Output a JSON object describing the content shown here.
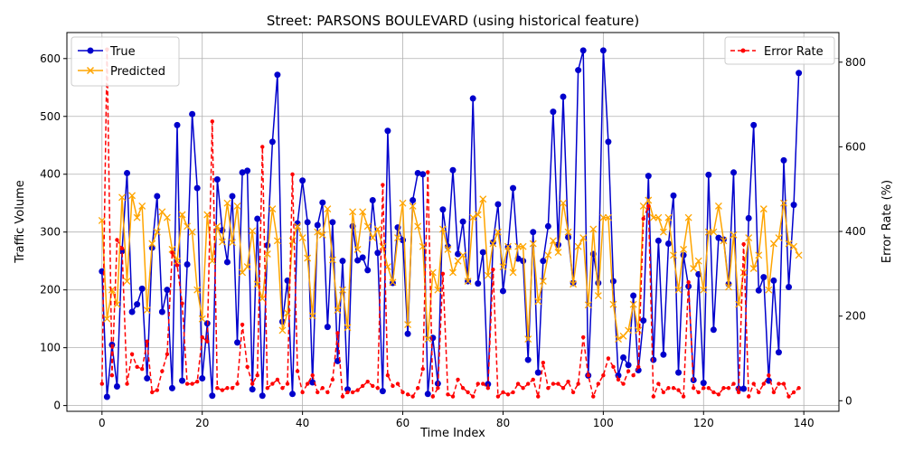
{
  "chart_data": {
    "type": "line",
    "title": "Street: PARSONS BOULEVARD (using historical feature)",
    "xlabel": "Time Index",
    "ylabel_left": "Traffic Volume",
    "ylabel_right": "Error Rate (%)",
    "xlim": [
      -7,
      147
    ],
    "ylim_left": [
      -10,
      645
    ],
    "ylim_right": [
      -25,
      870
    ],
    "x_ticks": [
      0,
      20,
      40,
      60,
      80,
      100,
      120,
      140
    ],
    "y_ticks_left": [
      0,
      100,
      200,
      300,
      400,
      500,
      600
    ],
    "y_ticks_right": [
      0,
      200,
      400,
      600,
      800
    ],
    "grid": true,
    "legend_left": "top-left",
    "legend_right": "top-right",
    "series": [
      {
        "name": "True",
        "axis": "left",
        "color": "#0000cc",
        "marker": "circle",
        "values": [
          232,
          15,
          105,
          33,
          267,
          402,
          162,
          175,
          202,
          47,
          273,
          362,
          162,
          200,
          30,
          485,
          43,
          244,
          504,
          376,
          47,
          142,
          17,
          391,
          303,
          248,
          362,
          109,
          403,
          406,
          28,
          323,
          17,
          277,
          456,
          572,
          145,
          216,
          20,
          315,
          389,
          317,
          40,
          312,
          351,
          136,
          317,
          77,
          250,
          28,
          310,
          251,
          256,
          234,
          355,
          264,
          25,
          475,
          212,
          308,
          286,
          124,
          355,
          402,
          400,
          20,
          117,
          38,
          339,
          275,
          407,
          262,
          318,
          215,
          531,
          211,
          265,
          37,
          282,
          348,
          198,
          274,
          376,
          254,
          250,
          79,
          300,
          57,
          250,
          310,
          508,
          278,
          534,
          291,
          212,
          580,
          614,
          52,
          262,
          212,
          614,
          456,
          215,
          52,
          83,
          70,
          190,
          61,
          147,
          397,
          79,
          285,
          88,
          280,
          363,
          57,
          260,
          206,
          44,
          227,
          39,
          399,
          131,
          290,
          287,
          210,
          403,
          29,
          29,
          324,
          485,
          199,
          222,
          43,
          216,
          92,
          424,
          205,
          347,
          575
        ]
      },
      {
        "name": "Predicted",
        "axis": "left",
        "color": "#ffa500",
        "marker": "x",
        "values": [
          320,
          150,
          200,
          175,
          360,
          215,
          363,
          325,
          345,
          165,
          280,
          300,
          335,
          325,
          270,
          250,
          330,
          310,
          300,
          200,
          150,
          330,
          250,
          310,
          283,
          350,
          282,
          345,
          230,
          240,
          302,
          210,
          185,
          262,
          340,
          285,
          130,
          160,
          285,
          310,
          290,
          255,
          155,
          300,
          295,
          340,
          252,
          165,
          200,
          135,
          335,
          270,
          335,
          310,
          290,
          305,
          275,
          240,
          213,
          290,
          350,
          140,
          345,
          310,
          275,
          115,
          230,
          200,
          305,
          270,
          230,
          250,
          260,
          215,
          325,
          330,
          357,
          225,
          280,
          300,
          240,
          275,
          230,
          275,
          275,
          115,
          280,
          180,
          215,
          260,
          285,
          265,
          350,
          300,
          210,
          275,
          290,
          174,
          305,
          190,
          325,
          325,
          175,
          115,
          120,
          130,
          175,
          130,
          345,
          355,
          325,
          325,
          300,
          325,
          260,
          200,
          270,
          325,
          237,
          250,
          200,
          300,
          300,
          345,
          285,
          205,
          295,
          175,
          230,
          290,
          237,
          260,
          340,
          200,
          280,
          290,
          350,
          280,
          275,
          260
        ]
      },
      {
        "name": "Error Rate",
        "axis": "right",
        "color": "#ff0000",
        "marker": "dot",
        "dashed": true,
        "values": [
          40,
          830,
          60,
          380,
          360,
          40,
          110,
          80,
          75,
          140,
          20,
          25,
          70,
          110,
          350,
          320,
          230,
          40,
          40,
          45,
          150,
          140,
          660,
          30,
          25,
          30,
          30,
          40,
          180,
          80,
          40,
          60,
          600,
          30,
          40,
          50,
          30,
          40,
          535,
          70,
          20,
          40,
          60,
          20,
          30,
          20,
          50,
          160,
          10,
          20,
          20,
          25,
          35,
          45,
          35,
          30,
          510,
          60,
          35,
          40,
          20,
          15,
          10,
          30,
          75,
          540,
          10,
          30,
          300,
          15,
          10,
          50,
          30,
          20,
          10,
          40,
          40,
          30,
          310,
          10,
          20,
          15,
          20,
          40,
          30,
          40,
          50,
          10,
          90,
          30,
          40,
          40,
          30,
          45,
          20,
          40,
          150,
          60,
          10,
          40,
          60,
          100,
          80,
          50,
          40,
          70,
          60,
          80,
          430,
          460,
          10,
          40,
          20,
          30,
          30,
          25,
          10,
          280,
          30,
          20,
          30,
          30,
          20,
          15,
          30,
          30,
          40,
          20,
          370,
          10,
          40,
          20,
          40,
          60,
          20,
          40,
          40,
          10,
          20,
          30
        ]
      }
    ]
  }
}
